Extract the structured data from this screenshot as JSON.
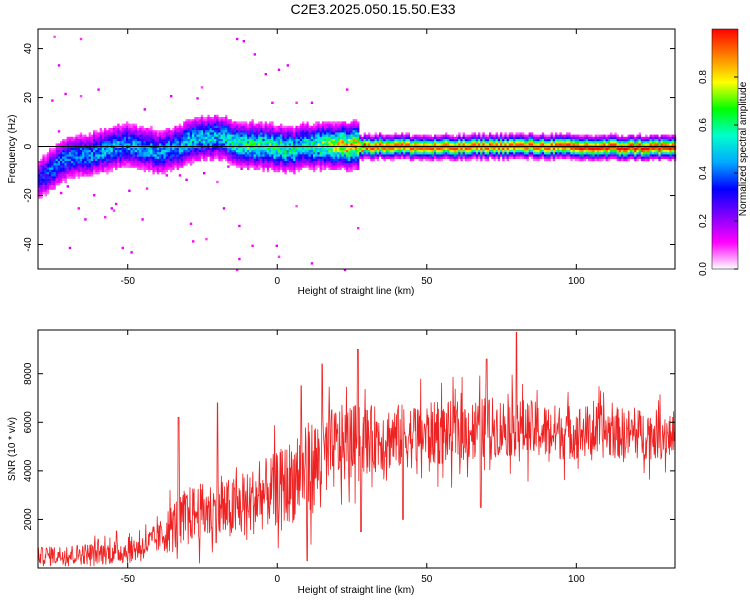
{
  "title": "C2E3.2025.050.15.50.E33",
  "colors": {
    "axis": "#000000",
    "snr_line": "#ee2222",
    "zero_line": "#000000"
  },
  "chart_data": [
    {
      "type": "heatmap",
      "name": "spectrogram",
      "xlabel": "Height of straight line (km)",
      "ylabel": "Frequency (Hz)",
      "xlim": [
        -80,
        133
      ],
      "ylim": [
        -50,
        48
      ],
      "xticks": [
        -50,
        0,
        50,
        100
      ],
      "yticks": [
        -40,
        -20,
        0,
        20,
        40
      ],
      "xtick_labels": [
        "-50",
        "0",
        "50",
        "100"
      ],
      "ytick_labels": [
        "-40",
        "-20",
        "0",
        "20",
        "40"
      ],
      "colorbar": {
        "label": "Normalized spectral amplitude",
        "range": [
          0,
          1
        ],
        "ticks": [
          0.0,
          0.2,
          0.4,
          0.6,
          0.8
        ],
        "tick_labels": [
          "0.0",
          "0.2",
          "0.4",
          "0.6",
          "0.8"
        ],
        "colormap": [
          "#ffffff",
          "#ff00ff",
          "#8000ff",
          "#0000ff",
          "#00aaff",
          "#00ffcc",
          "#00ff00",
          "#ffff00",
          "#ff8000",
          "#ff0000"
        ]
      },
      "ridge": {
        "x": [
          -80,
          -75,
          -70,
          -65,
          -60,
          -55,
          -50,
          -45,
          -40,
          -35,
          -30,
          -25,
          -20,
          -15,
          -10,
          -5,
          0,
          5,
          10,
          15,
          20,
          25,
          30,
          40,
          50,
          60,
          70,
          80,
          90,
          100,
          110,
          120,
          133
        ],
        "y": [
          -13,
          -8,
          -4,
          -3,
          -2,
          0,
          1,
          0,
          -2,
          0,
          2,
          4,
          4,
          2,
          1,
          0.5,
          0,
          -1,
          1,
          0.5,
          0.5,
          0.5,
          0.5,
          0.5,
          0,
          0,
          0.5,
          0.5,
          0.5,
          0,
          0,
          0,
          0
        ],
        "peak_amplitude": [
          0.3,
          0.4,
          0.4,
          0.4,
          0.45,
          0.45,
          0.45,
          0.45,
          0.45,
          0.45,
          0.5,
          0.5,
          0.5,
          0.55,
          0.6,
          0.6,
          0.6,
          0.55,
          0.55,
          0.65,
          0.75,
          0.8,
          0.95,
          0.95,
          0.95,
          0.95,
          0.95,
          0.95,
          0.95,
          1.0,
          1.0,
          1.0,
          1.0
        ]
      }
    },
    {
      "type": "line",
      "name": "snr",
      "xlabel": "Height of straight line (km)",
      "ylabel": "SNR (10 * v/v)",
      "xlim": [
        -80,
        133
      ],
      "ylim": [
        0,
        9800
      ],
      "xticks": [
        -50,
        0,
        50,
        100
      ],
      "yticks": [
        2000,
        4000,
        6000,
        8000
      ],
      "xtick_labels": [
        "-50",
        "0",
        "50",
        "100"
      ],
      "ytick_labels": [
        "2000",
        "4000",
        "6000",
        "8000"
      ],
      "trend": {
        "x": [
          -80,
          -70,
          -60,
          -50,
          -45,
          -40,
          -35,
          -30,
          -25,
          -20,
          -15,
          -10,
          -5,
          0,
          5,
          10,
          15,
          20,
          25,
          30,
          40,
          50,
          60,
          70,
          80,
          90,
          100,
          110,
          120,
          133
        ],
        "y": [
          500,
          550,
          600,
          700,
          900,
          1200,
          1700,
          2200,
          2300,
          2300,
          2400,
          2600,
          3000,
          3300,
          3600,
          4000,
          4500,
          5000,
          5200,
          5300,
          5400,
          5500,
          5600,
          5800,
          5800,
          5600,
          5600,
          5600,
          5500,
          5500
        ]
      },
      "noise_amplitude": {
        "x": [
          -80,
          -40,
          -35,
          0,
          10,
          30,
          60,
          133
        ],
        "y": [
          350,
          600,
          1100,
          1500,
          2000,
          1400,
          1300,
          1000
        ]
      },
      "peaks": {
        "x": [
          -33,
          -20,
          8,
          15,
          27,
          42,
          70,
          80
        ],
        "y": [
          6200,
          6800,
          7500,
          8400,
          9000,
          8300,
          8600,
          9700
        ]
      },
      "troughs": {
        "x": [
          10,
          28,
          42,
          68
        ],
        "y": [
          300,
          1500,
          2000,
          2500
        ]
      }
    }
  ]
}
